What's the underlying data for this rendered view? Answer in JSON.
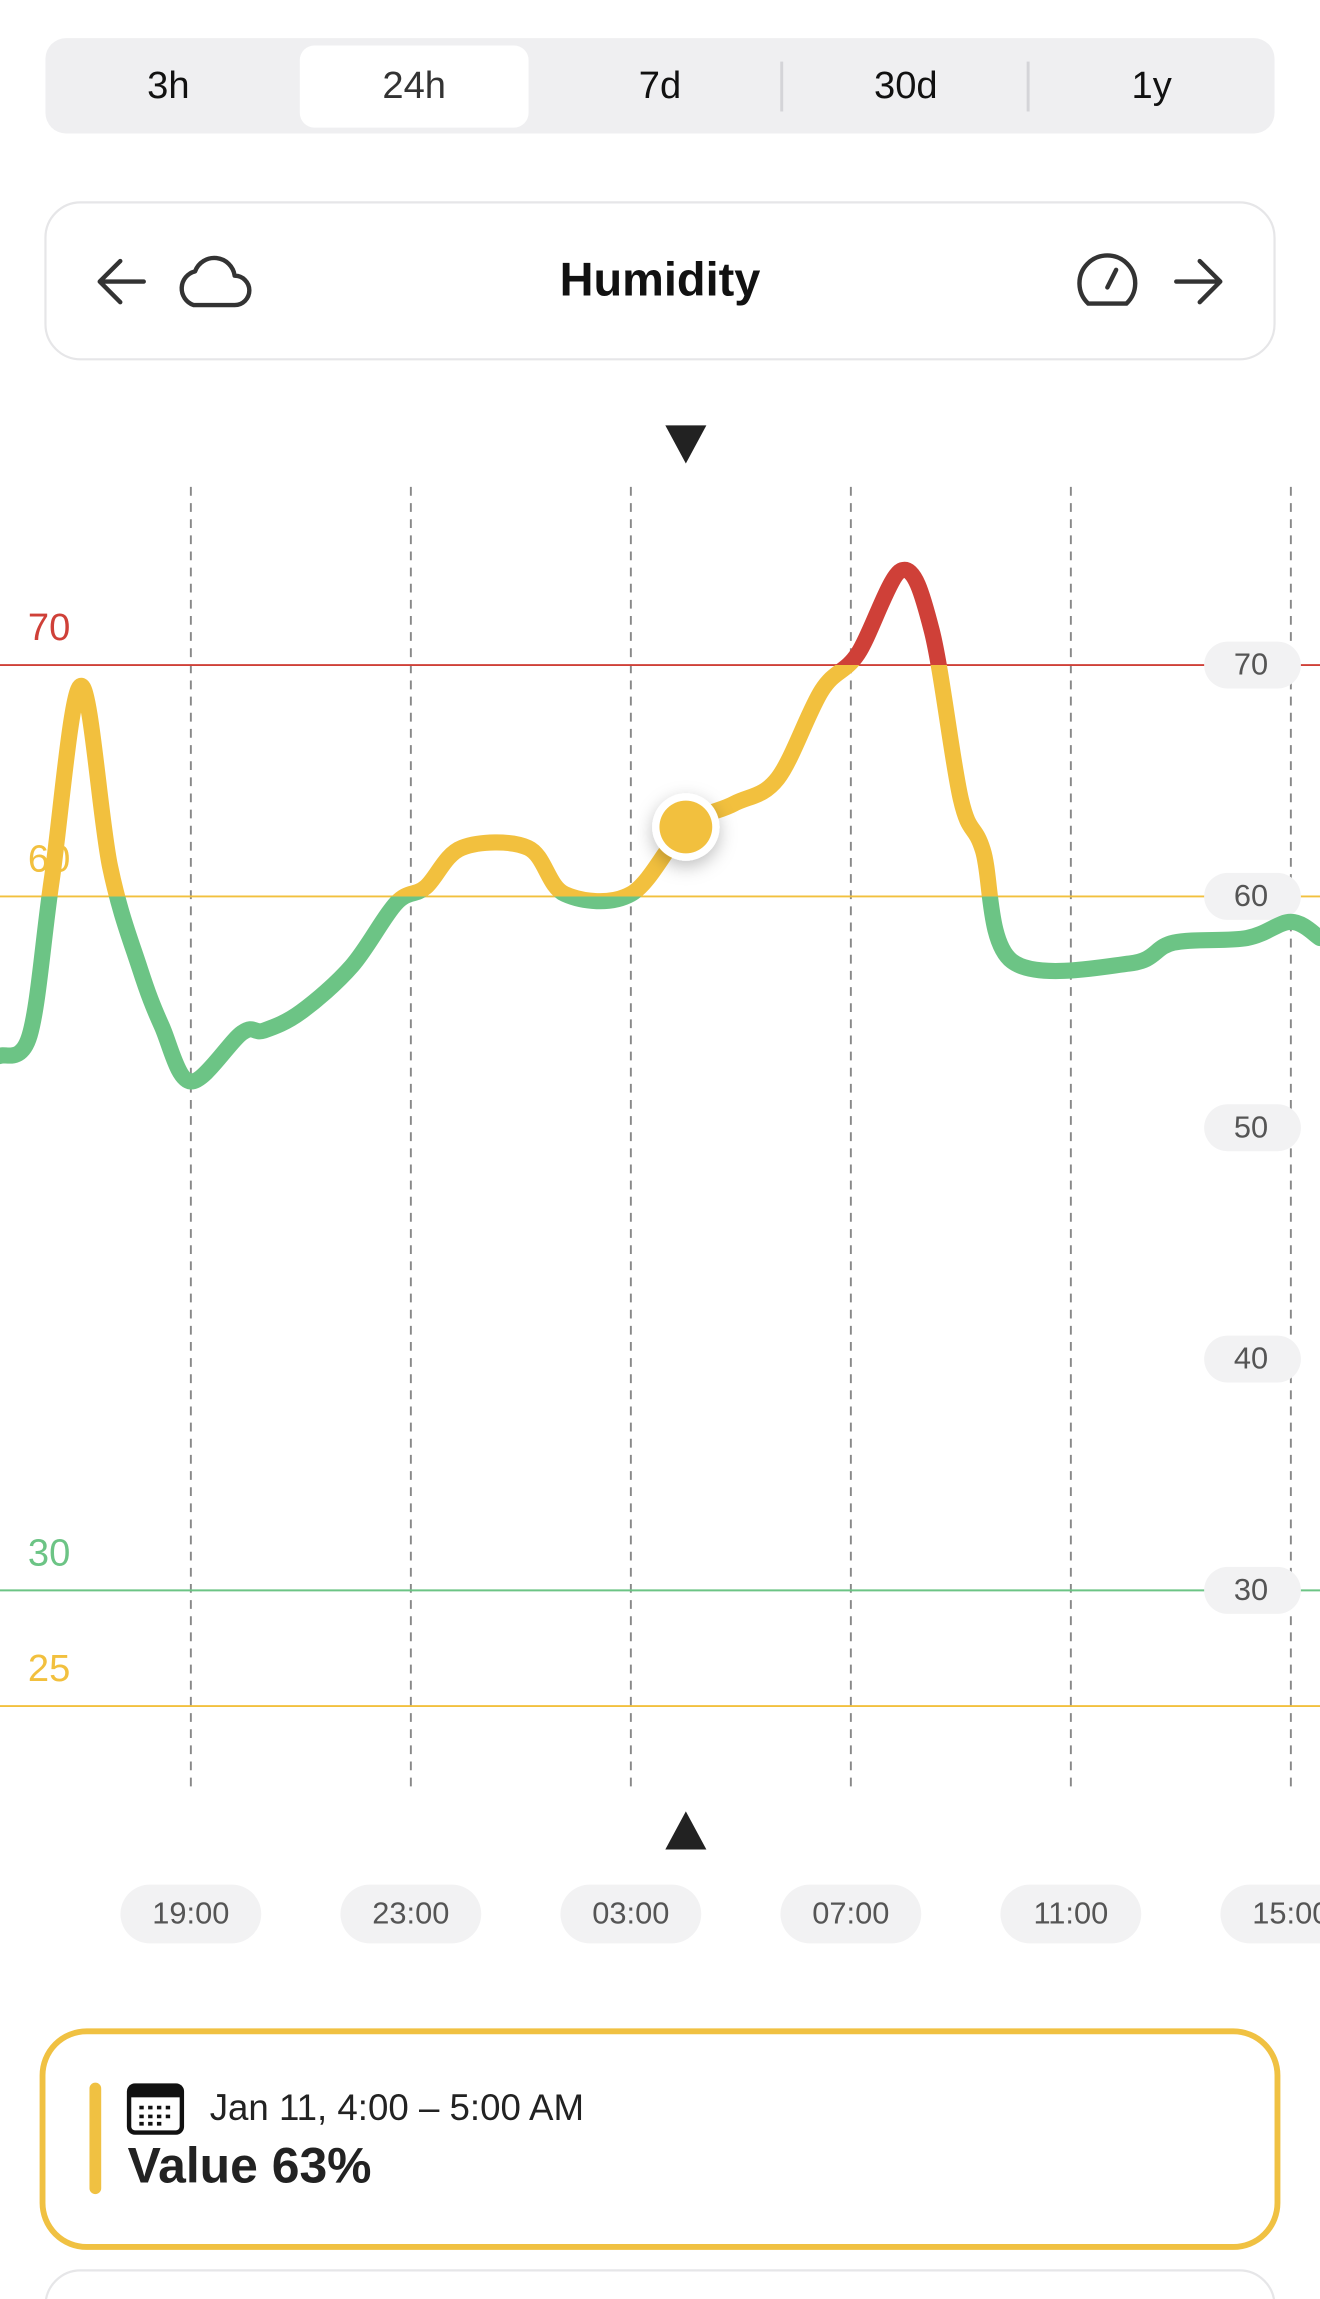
{
  "tabs": {
    "items": [
      "3h",
      "24h",
      "7d",
      "30d",
      "1y"
    ],
    "active": 1
  },
  "header": {
    "title": "Humidity"
  },
  "chart_data": {
    "type": "line",
    "x": [
      15.53,
      16.07,
      16.47,
      17.0,
      17.53,
      18.07,
      18.47,
      19.0,
      19.93,
      20.33,
      21.0,
      21.93,
      22.73,
      23.27,
      23.93,
      25.13,
      25.8,
      27.0,
      28.0,
      28.87,
      29.67,
      30.47,
      31.13,
      31.93,
      32.47,
      33.0,
      33.4,
      33.93,
      36.07,
      36.87,
      38.2,
      39.0,
      39.53
    ],
    "series": [
      {
        "values": [
          53.1,
          54.0,
          60.7,
          69.1,
          61.3,
          56.9,
          54.4,
          52.0,
          54.1,
          54.2,
          55.0,
          57.0,
          59.7,
          60.4,
          62.1,
          62.1,
          60.1,
          60.1,
          63.0,
          64.0,
          65.1,
          68.9,
          70.5,
          74.1,
          71.5,
          64.2,
          62.0,
          57.2,
          57.1,
          58.0,
          58.2,
          58.9,
          58.2
        ]
      }
    ],
    "xlim": [
      15.53,
      39.53
    ],
    "xticks": [
      {
        "value": 19,
        "label": "19:00"
      },
      {
        "value": 23,
        "label": "23:00"
      },
      {
        "value": 27,
        "label": "03:00"
      },
      {
        "value": 31,
        "label": "07:00"
      },
      {
        "value": 35,
        "label": "11:00"
      },
      {
        "value": 39,
        "label": "15:00"
      }
    ],
    "ylim": [
      21.4,
      77.7
    ],
    "yticks": [
      70,
      60,
      50,
      40,
      30
    ],
    "thresholds": [
      {
        "value": 70,
        "color": "#cf4038"
      },
      {
        "value": 60,
        "color": "#f2c03e"
      },
      {
        "value": 30,
        "color": "#6cc485"
      },
      {
        "value": 25,
        "color": "#f2c03e"
      }
    ],
    "highlight": {
      "x": 28.0,
      "y": 63
    }
  },
  "card": {
    "date": "Jan 11, 4:00 – 5:00 AM",
    "value": "Value 63%",
    "color": "#f0c142"
  }
}
